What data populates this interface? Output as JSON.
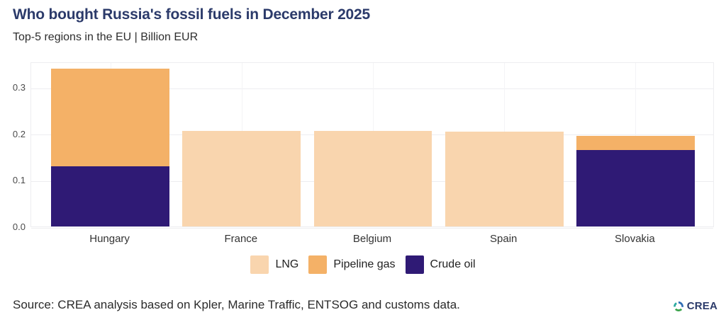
{
  "header": {
    "title": "Who bought Russia's fossil fuels in December 2025",
    "subtitle": "Top-5 regions in the EU | Billion EUR"
  },
  "chart_data": {
    "type": "bar",
    "stacked": true,
    "title": "Who bought Russia's fossil fuels in December 2025",
    "subtitle": "Top-5 regions in the EU | Billion EUR",
    "unit": "Billion EUR",
    "categories": [
      "Hungary",
      "France",
      "Belgium",
      "Spain",
      "Slovakia"
    ],
    "series": [
      {
        "name": "LNG",
        "color": "#f9d5ae",
        "values": [
          0,
          0.205,
          0.205,
          0.204,
          0
        ]
      },
      {
        "name": "Pipeline gas",
        "color": "#f4b167",
        "values": [
          0.21,
          0,
          0,
          0,
          0.03
        ]
      },
      {
        "name": "Crude oil",
        "color": "#2f1a75",
        "values": [
          0.13,
          0,
          0,
          0,
          0.165
        ]
      }
    ],
    "stack_order": [
      "Crude oil",
      "LNG",
      "Pipeline gas"
    ],
    "ylim": [
      0,
      0.355
    ],
    "yticks": [
      0,
      0.1,
      0.2,
      0.3
    ],
    "ytick_format_decimals": 1,
    "grid": true,
    "legend_position": "bottom",
    "xlabel": "",
    "ylabel": ""
  },
  "footer": {
    "source": "Source: CREA analysis based on Kpler, Marine Traffic, ENTSOG and customs data.",
    "brand": "CREA"
  },
  "colors": {
    "title": "#2b3a6a",
    "brand": "#2b3a6a",
    "grid_h": "#ededf0",
    "grid_v": "#f4f4f6"
  }
}
